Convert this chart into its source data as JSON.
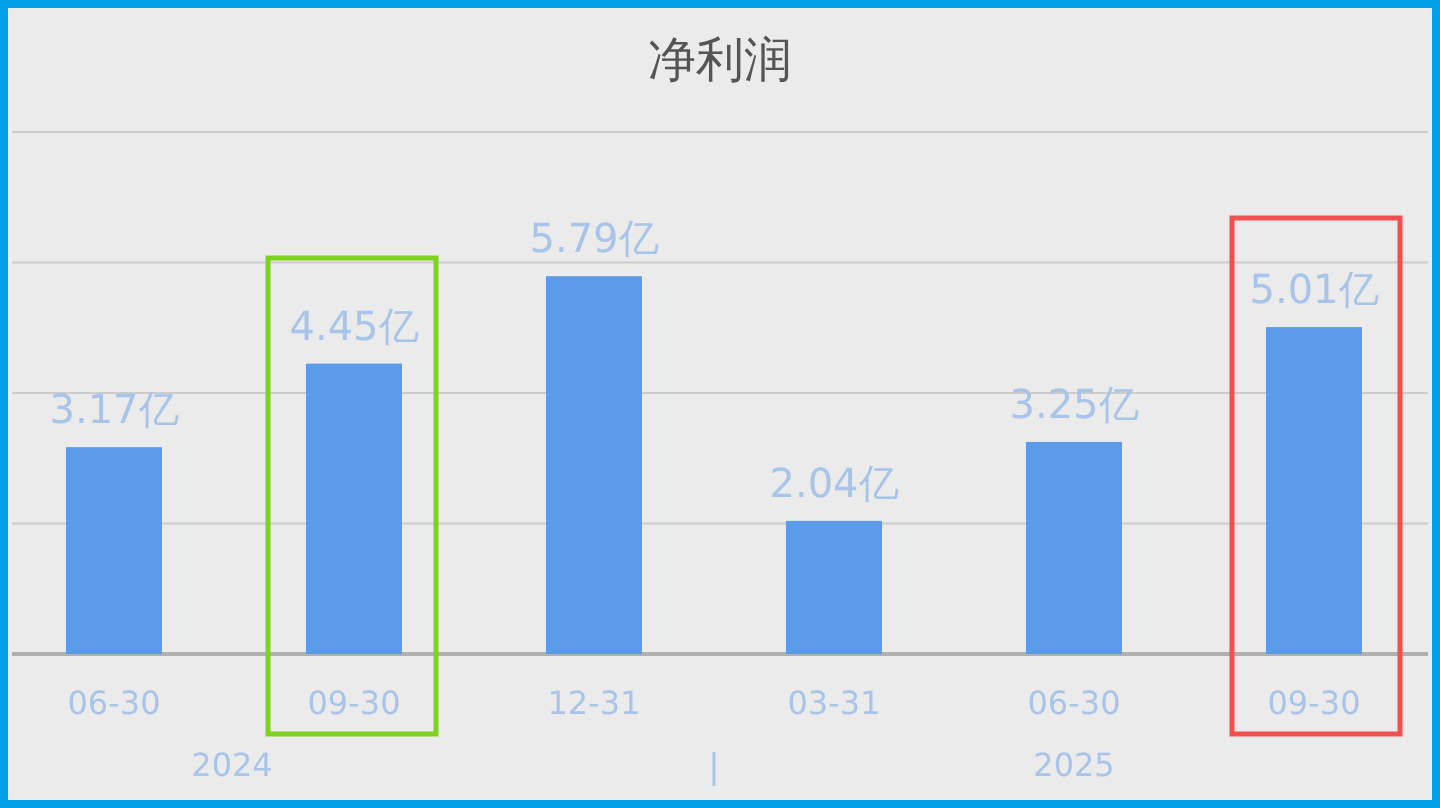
{
  "chart_data": {
    "type": "bar",
    "title": "净利润",
    "categories": [
      "06-30",
      "09-30",
      "12-31",
      "03-31",
      "06-30",
      "09-30"
    ],
    "values": [
      3.17,
      4.45,
      5.79,
      2.04,
      3.25,
      5.01
    ],
    "value_labels": [
      "3.17亿",
      "4.45亿",
      "5.79亿",
      "2.04亿",
      "3.25亿",
      "5.01亿"
    ],
    "color": "#5b9be8",
    "ylim": [
      0,
      8
    ],
    "yticks": [
      {
        "value": 0,
        "label": null
      },
      {
        "value": 2,
        "label": null
      },
      {
        "value": 4,
        "label": null
      },
      {
        "value": 6,
        "label": null
      },
      {
        "value": 8,
        "label": null
      }
    ],
    "grid": "y",
    "tick_labels": "x",
    "annotations": [
      "2024",
      "2025"
    ]
  }
}
